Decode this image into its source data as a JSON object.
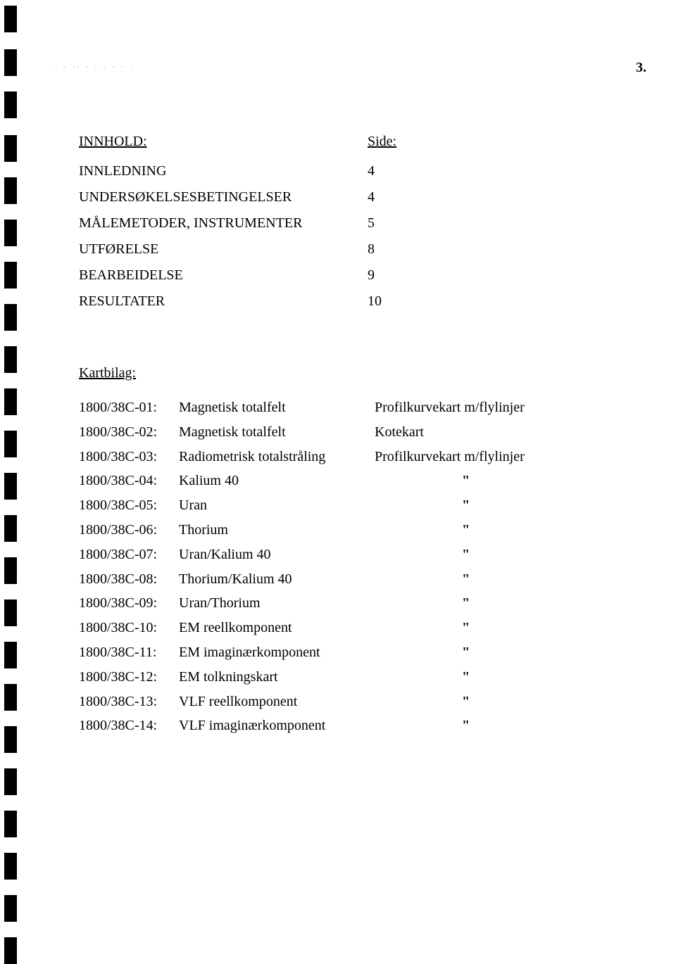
{
  "page_number": "3.",
  "faint_header": ".  .  .. . .  .  .  .  .",
  "toc": {
    "heading_label": "INNHOLD:",
    "heading_page": "Side:",
    "rows": [
      {
        "item": "INNLEDNING",
        "page": "4"
      },
      {
        "item": "UNDERSØKELSESBETINGELSER",
        "page": "4"
      },
      {
        "item": "MÅLEMETODER, INSTRUMENTER",
        "page": "5"
      },
      {
        "item": "UTFØRELSE",
        "page": "8"
      },
      {
        "item": "BEARBEIDELSE",
        "page": "9"
      },
      {
        "item": "RESULTATER",
        "page": "10"
      }
    ]
  },
  "kartbilag": {
    "heading": "Kartbilag:",
    "rows": [
      {
        "code": "1800/38C-01:",
        "desc": "Magnetisk totalfelt",
        "note": "Profilkurvekart m/flylinjer"
      },
      {
        "code": "1800/38C-02:",
        "desc": "Magnetisk totalfelt",
        "note": "Kotekart"
      },
      {
        "code": "1800/38C-03:",
        "desc": "Radiometrisk totalstråling",
        "note": "Profilkurvekart m/flylinjer"
      },
      {
        "code": "1800/38C-04:",
        "desc": "Kalium 40",
        "note": "\""
      },
      {
        "code": "1800/38C-05:",
        "desc": "Uran",
        "note": "\""
      },
      {
        "code": "1800/38C-06:",
        "desc": "Thorium",
        "note": "\""
      },
      {
        "code": "1800/38C-07:",
        "desc": "Uran/Kalium 40",
        "note": "\""
      },
      {
        "code": "1800/38C-08:",
        "desc": "Thorium/Kalium 40",
        "note": "\""
      },
      {
        "code": "1800/38C-09:",
        "desc": "Uran/Thorium",
        "note": "\""
      },
      {
        "code": "1800/38C-10:",
        "desc": "EM reellkomponent",
        "note": "\""
      },
      {
        "code": "1800/38C-11:",
        "desc": "EM imaginærkomponent",
        "note": "\""
      },
      {
        "code": "1800/38C-12:",
        "desc": "EM tolkningskart",
        "note": "\""
      },
      {
        "code": "1800/38C-13:",
        "desc": "VLF reellkomponent",
        "note": "\""
      },
      {
        "code": "1800/38C-14:",
        "desc": "VLF imaginærkomponent",
        "note": "\""
      }
    ]
  },
  "holes": [
    8,
    70,
    130,
    192,
    252,
    312,
    372,
    432,
    492,
    552,
    612,
    672,
    732,
    792,
    852,
    912,
    972,
    1032,
    1092,
    1152,
    1212,
    1272,
    1332
  ]
}
